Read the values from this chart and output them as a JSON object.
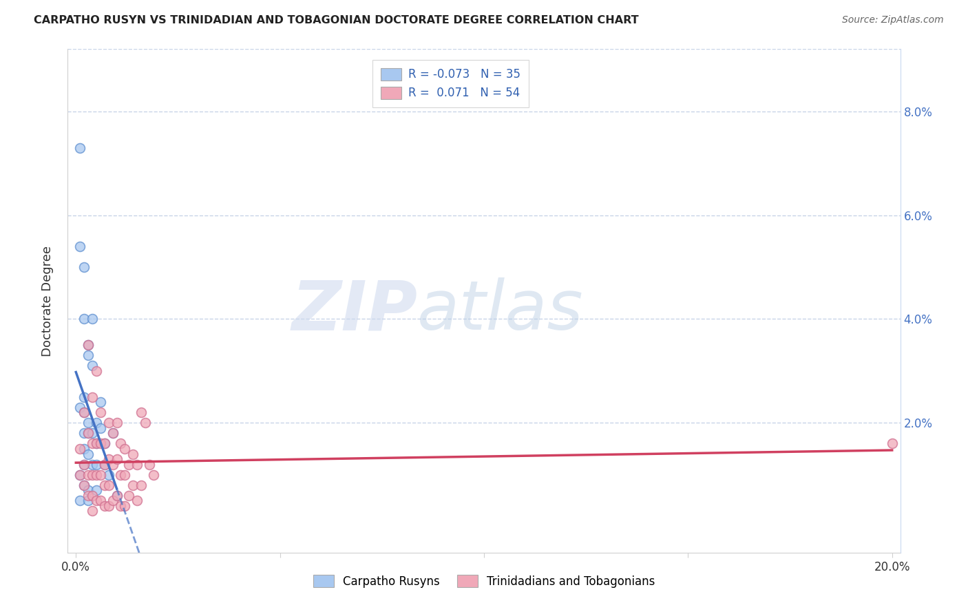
{
  "title": "CARPATHO RUSYN VS TRINIDADIAN AND TOBAGONIAN DOCTORATE DEGREE CORRELATION CHART",
  "source": "Source: ZipAtlas.com",
  "ylabel": "Doctorate Degree",
  "xlim": [
    -0.002,
    0.202
  ],
  "ylim": [
    -0.005,
    0.092
  ],
  "blue_R": -0.073,
  "blue_N": 35,
  "pink_R": 0.071,
  "pink_N": 54,
  "blue_color": "#a8c8f0",
  "pink_color": "#f0a8b8",
  "blue_edge_color": "#6090d0",
  "pink_edge_color": "#d07090",
  "blue_line_color": "#4472c4",
  "pink_line_color": "#d04060",
  "legend_label_blue": "Carpatho Rusyns",
  "legend_label_pink": "Trinidadians and Tobagonians",
  "background_color": "#ffffff",
  "grid_color": "#c8d4e8",
  "marker_size": 100,
  "blue_scatter_x": [
    0.001,
    0.001,
    0.001,
    0.001,
    0.001,
    0.002,
    0.002,
    0.002,
    0.002,
    0.002,
    0.002,
    0.002,
    0.002,
    0.003,
    0.003,
    0.003,
    0.003,
    0.003,
    0.003,
    0.003,
    0.004,
    0.004,
    0.004,
    0.004,
    0.005,
    0.005,
    0.005,
    0.005,
    0.006,
    0.006,
    0.007,
    0.007,
    0.008,
    0.009,
    0.01
  ],
  "blue_scatter_y": [
    0.073,
    0.054,
    0.023,
    0.01,
    0.005,
    0.05,
    0.04,
    0.025,
    0.022,
    0.018,
    0.015,
    0.012,
    0.008,
    0.035,
    0.033,
    0.02,
    0.018,
    0.014,
    0.007,
    0.005,
    0.04,
    0.031,
    0.018,
    0.012,
    0.02,
    0.016,
    0.012,
    0.007,
    0.024,
    0.019,
    0.016,
    0.012,
    0.01,
    0.018,
    0.006
  ],
  "pink_scatter_x": [
    0.001,
    0.001,
    0.002,
    0.002,
    0.002,
    0.003,
    0.003,
    0.003,
    0.003,
    0.004,
    0.004,
    0.004,
    0.004,
    0.004,
    0.005,
    0.005,
    0.005,
    0.005,
    0.006,
    0.006,
    0.006,
    0.006,
    0.007,
    0.007,
    0.007,
    0.007,
    0.008,
    0.008,
    0.008,
    0.008,
    0.009,
    0.009,
    0.009,
    0.01,
    0.01,
    0.01,
    0.011,
    0.011,
    0.011,
    0.012,
    0.012,
    0.012,
    0.013,
    0.013,
    0.014,
    0.014,
    0.015,
    0.015,
    0.016,
    0.016,
    0.017,
    0.018,
    0.019,
    0.2
  ],
  "pink_scatter_y": [
    0.015,
    0.01,
    0.022,
    0.012,
    0.008,
    0.035,
    0.018,
    0.01,
    0.006,
    0.025,
    0.016,
    0.01,
    0.006,
    0.003,
    0.03,
    0.016,
    0.01,
    0.005,
    0.022,
    0.016,
    0.01,
    0.005,
    0.016,
    0.012,
    0.008,
    0.004,
    0.02,
    0.013,
    0.008,
    0.004,
    0.018,
    0.012,
    0.005,
    0.02,
    0.013,
    0.006,
    0.016,
    0.01,
    0.004,
    0.015,
    0.01,
    0.004,
    0.012,
    0.006,
    0.014,
    0.008,
    0.012,
    0.005,
    0.022,
    0.008,
    0.02,
    0.012,
    0.01,
    0.016
  ],
  "watermark_zip": "ZIP",
  "watermark_atlas": "atlas",
  "yticks": [
    0.0,
    0.02,
    0.04,
    0.06,
    0.08
  ],
  "ytick_labels": [
    "",
    "2.0%",
    "4.0%",
    "6.0%",
    "8.0%"
  ],
  "xticks": [
    0.0,
    0.05,
    0.1,
    0.15,
    0.2
  ],
  "xtick_labels": [
    "0.0%",
    "",
    "",
    "",
    "20.0%"
  ]
}
